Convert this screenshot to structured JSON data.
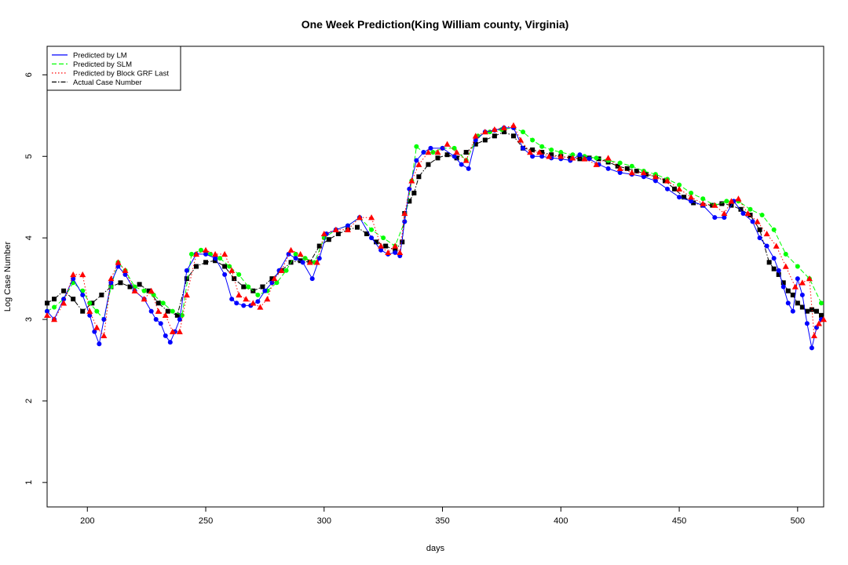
{
  "chart_data": {
    "type": "line",
    "title": "One Week Prediction(King William county, Virginia)",
    "xlabel": "days",
    "ylabel": "Log Case Number",
    "xlim": [
      183,
      511
    ],
    "ylim": [
      0.7,
      6.35
    ],
    "xticks": [
      200,
      250,
      300,
      350,
      400,
      450,
      500
    ],
    "yticks": [
      1,
      2,
      3,
      4,
      5,
      6
    ],
    "legend_position": "top-left",
    "series": [
      {
        "name": "Predicted by LM",
        "color": "#0000ff",
        "marker": "circle",
        "line_style": "solid",
        "x": [
          183,
          186,
          190,
          194,
          198,
          201,
          203,
          205,
          207,
          210,
          213,
          216,
          220,
          224,
          227,
          229,
          231,
          233,
          235,
          237,
          239,
          242,
          246,
          250,
          254,
          258,
          261,
          263,
          266,
          269,
          272,
          275,
          278,
          281,
          285,
          288,
          291,
          295,
          298,
          301,
          305,
          310,
          315,
          320,
          324,
          327,
          330,
          332,
          334,
          336,
          339,
          342,
          345,
          350,
          355,
          358,
          361,
          364,
          368,
          372,
          376,
          380,
          384,
          388,
          392,
          396,
          400,
          404,
          408,
          412,
          416,
          420,
          425,
          430,
          435,
          440,
          445,
          450,
          455,
          460,
          465,
          469,
          473,
          477,
          481,
          484,
          487,
          490,
          492,
          494,
          496,
          498,
          500,
          502,
          504,
          506,
          508,
          510
        ],
        "y": [
          3.1,
          3.0,
          3.25,
          3.5,
          3.3,
          3.05,
          2.85,
          2.7,
          3.0,
          3.45,
          3.65,
          3.55,
          3.35,
          3.25,
          3.1,
          3.0,
          2.95,
          2.8,
          2.72,
          2.85,
          3.0,
          3.6,
          3.8,
          3.8,
          3.75,
          3.55,
          3.25,
          3.2,
          3.17,
          3.17,
          3.22,
          3.35,
          3.45,
          3.6,
          3.8,
          3.75,
          3.7,
          3.5,
          3.75,
          4.05,
          4.1,
          4.15,
          4.25,
          4.0,
          3.85,
          3.8,
          3.82,
          3.78,
          4.2,
          4.6,
          4.95,
          5.05,
          5.1,
          5.1,
          5.0,
          4.9,
          4.85,
          5.2,
          5.3,
          5.32,
          5.35,
          5.35,
          5.1,
          5.0,
          5.0,
          4.98,
          4.97,
          4.95,
          5.02,
          4.97,
          4.9,
          4.85,
          4.8,
          4.78,
          4.75,
          4.7,
          4.6,
          4.5,
          4.45,
          4.4,
          4.25,
          4.25,
          4.45,
          4.3,
          4.2,
          4.0,
          3.9,
          3.75,
          3.6,
          3.4,
          3.2,
          3.1,
          3.5,
          3.3,
          2.95,
          2.65,
          2.9,
          3.0
        ]
      },
      {
        "name": "Predicted by SLM",
        "color": "#00ff00",
        "marker": "circle",
        "line_style": "dashed",
        "x": [
          183,
          186,
          190,
          194,
          198,
          201,
          204,
          207,
          210,
          213,
          216,
          220,
          224,
          228,
          232,
          236,
          240,
          244,
          248,
          252,
          256,
          260,
          264,
          268,
          272,
          276,
          280,
          284,
          288,
          292,
          296,
          300,
          305,
          310,
          315,
          320,
          325,
          330,
          334,
          337,
          339,
          342,
          346,
          350,
          355,
          360,
          365,
          370,
          375,
          380,
          384,
          388,
          392,
          396,
          400,
          405,
          410,
          415,
          420,
          425,
          430,
          435,
          440,
          445,
          450,
          455,
          460,
          465,
          470,
          475,
          480,
          485,
          490,
          495,
          500,
          505,
          510
        ],
        "y": [
          3.1,
          3.15,
          3.25,
          3.45,
          3.35,
          3.2,
          3.1,
          3.0,
          3.4,
          3.7,
          3.6,
          3.4,
          3.35,
          3.3,
          3.2,
          3.1,
          3.05,
          3.8,
          3.85,
          3.8,
          3.75,
          3.65,
          3.55,
          3.4,
          3.3,
          3.35,
          3.45,
          3.6,
          3.8,
          3.75,
          3.7,
          4.0,
          4.1,
          4.15,
          4.25,
          4.1,
          4.0,
          3.9,
          4.2,
          4.7,
          5.12,
          5.05,
          5.05,
          5.1,
          5.1,
          4.95,
          5.25,
          5.3,
          5.33,
          5.35,
          5.3,
          5.2,
          5.12,
          5.08,
          5.05,
          5.02,
          5.0,
          4.98,
          4.95,
          4.92,
          4.88,
          4.82,
          4.78,
          4.72,
          4.65,
          4.55,
          4.48,
          4.4,
          4.45,
          4.45,
          4.35,
          4.28,
          4.1,
          3.8,
          3.65,
          3.5,
          3.2
        ]
      },
      {
        "name": "Predicted by Block GRF Last",
        "color": "#ff0000",
        "marker": "triangle",
        "line_style": "dotted",
        "x": [
          183,
          186,
          190,
          194,
          198,
          201,
          204,
          207,
          210,
          213,
          216,
          220,
          224,
          227,
          230,
          233,
          236,
          239,
          242,
          246,
          250,
          254,
          258,
          261,
          264,
          267,
          270,
          273,
          276,
          279,
          282,
          286,
          290,
          294,
          297,
          300,
          305,
          310,
          315,
          320,
          324,
          327,
          330,
          332,
          334,
          337,
          340,
          344,
          348,
          352,
          356,
          360,
          364,
          368,
          372,
          376,
          380,
          383,
          387,
          391,
          395,
          400,
          405,
          410,
          415,
          420,
          425,
          430,
          435,
          440,
          445,
          450,
          455,
          460,
          465,
          469,
          472,
          475,
          479,
          483,
          487,
          491,
          495,
          499,
          502,
          505,
          507,
          509,
          511
        ],
        "y": [
          3.05,
          3.0,
          3.2,
          3.55,
          3.55,
          3.1,
          2.9,
          2.8,
          3.5,
          3.7,
          3.6,
          3.35,
          3.25,
          3.35,
          3.1,
          3.05,
          2.85,
          2.85,
          3.3,
          3.8,
          3.85,
          3.8,
          3.8,
          3.6,
          3.3,
          3.25,
          3.2,
          3.15,
          3.25,
          3.5,
          3.6,
          3.85,
          3.8,
          3.7,
          3.7,
          4.05,
          4.1,
          4.1,
          4.25,
          4.25,
          3.9,
          3.82,
          3.9,
          3.82,
          4.3,
          4.7,
          4.9,
          5.05,
          5.05,
          5.15,
          5.05,
          4.95,
          5.25,
          5.3,
          5.33,
          5.35,
          5.38,
          5.2,
          5.05,
          5.05,
          5.0,
          5.0,
          4.98,
          4.97,
          4.9,
          4.98,
          4.85,
          4.8,
          4.8,
          4.75,
          4.7,
          4.6,
          4.5,
          4.42,
          4.4,
          4.3,
          4.45,
          4.48,
          4.3,
          4.2,
          4.05,
          3.9,
          3.65,
          3.4,
          3.45,
          3.5,
          2.8,
          2.95,
          3.0
        ]
      },
      {
        "name": "Actual Case Number",
        "color": "#000000",
        "marker": "square",
        "line_style": "dashdot",
        "x": [
          183,
          186,
          190,
          194,
          198,
          202,
          206,
          210,
          214,
          218,
          222,
          226,
          230,
          234,
          238,
          242,
          246,
          250,
          254,
          258,
          262,
          266,
          270,
          274,
          278,
          282,
          286,
          290,
          294,
          298,
          302,
          306,
          310,
          314,
          318,
          322,
          326,
          330,
          333,
          334,
          336,
          338,
          340,
          344,
          348,
          352,
          356,
          360,
          364,
          368,
          372,
          376,
          380,
          384,
          388,
          392,
          396,
          400,
          404,
          408,
          412,
          416,
          420,
          424,
          428,
          432,
          436,
          440,
          444,
          448,
          452,
          456,
          460,
          464,
          468,
          472,
          476,
          480,
          484,
          488,
          490,
          492,
          494,
          496,
          498,
          500,
          502,
          504,
          506,
          508,
          510
        ],
        "y": [
          3.2,
          3.25,
          3.35,
          3.25,
          3.1,
          3.2,
          3.3,
          3.4,
          3.45,
          3.4,
          3.43,
          3.35,
          3.2,
          3.1,
          3.05,
          3.5,
          3.65,
          3.7,
          3.72,
          3.65,
          3.5,
          3.4,
          3.35,
          3.4,
          3.5,
          3.6,
          3.7,
          3.72,
          3.7,
          3.9,
          3.98,
          4.05,
          4.1,
          4.13,
          4.05,
          3.95,
          3.9,
          3.85,
          3.95,
          4.3,
          4.45,
          4.55,
          4.75,
          4.9,
          4.98,
          5.02,
          4.98,
          5.05,
          5.15,
          5.2,
          5.25,
          5.3,
          5.25,
          5.1,
          5.08,
          5.05,
          5.02,
          5.0,
          4.98,
          4.97,
          4.98,
          4.97,
          4.93,
          4.88,
          4.85,
          4.82,
          4.78,
          4.75,
          4.7,
          4.6,
          4.5,
          4.43,
          4.4,
          4.4,
          4.42,
          4.4,
          4.35,
          4.28,
          4.1,
          3.7,
          3.62,
          3.55,
          3.45,
          3.35,
          3.3,
          3.2,
          3.15,
          3.1,
          3.12,
          3.1,
          3.05
        ]
      }
    ]
  }
}
